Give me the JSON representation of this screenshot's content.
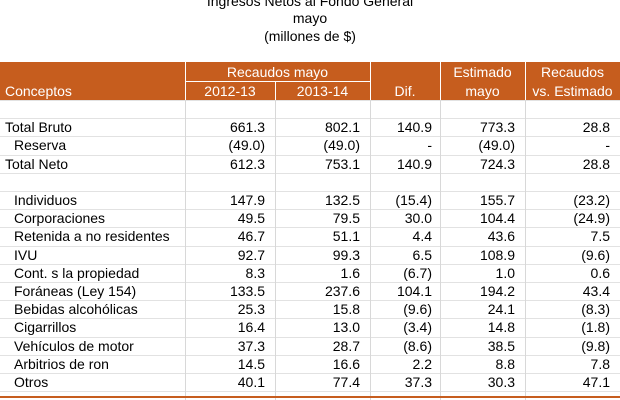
{
  "title": {
    "line1": "Ingresos Netos al Fondo General",
    "line2": "mayo",
    "line3": "(millones de $)"
  },
  "header": {
    "group": "Recaudos mayo",
    "estimado_top": "Estimado",
    "recaudos_top": "Recaudos",
    "columns": [
      "Conceptos",
      "2012-13",
      "2013-14",
      "Dif.",
      "mayo",
      "vs. Estimado"
    ]
  },
  "totals": [
    [
      "Total Bruto",
      "661.3",
      "802.1",
      "140.9",
      "773.3",
      "28.8"
    ],
    [
      "Reserva",
      "(49.0)",
      "(49.0)",
      "-",
      "(49.0)",
      "-"
    ],
    [
      "Total Neto",
      "612.3",
      "753.1",
      "140.9",
      "724.3",
      "28.8"
    ]
  ],
  "components": [
    [
      "Individuos",
      "147.9",
      "132.5",
      "(15.4)",
      "155.7",
      "(23.2)"
    ],
    [
      "Corporaciones",
      "49.5",
      "79.5",
      "30.0",
      "104.4",
      "(24.9)"
    ],
    [
      "Retenida a no residentes",
      "46.7",
      "51.1",
      "4.4",
      "43.6",
      "7.5"
    ],
    [
      "IVU",
      "92.7",
      "99.3",
      "6.5",
      "108.9",
      "(9.6)"
    ],
    [
      "Cont. s la propiedad",
      "8.3",
      "1.6",
      "(6.7)",
      "1.0",
      "0.6"
    ],
    [
      "Foráneas (Ley 154)",
      "133.5",
      "237.6",
      "104.1",
      "194.2",
      "43.4"
    ],
    [
      "Bebidas alcohólicas",
      "25.3",
      "15.8",
      "(9.6)",
      "24.1",
      "(8.3)"
    ],
    [
      "Cigarrillos",
      "16.4",
      "13.0",
      "(3.4)",
      "14.8",
      "(1.8)"
    ],
    [
      "Vehículos de motor",
      "37.3",
      "28.7",
      "(8.6)",
      "38.5",
      "(9.8)"
    ],
    [
      "Arbitrios de ron",
      "14.5",
      "16.6",
      "2.2",
      "8.8",
      "7.8"
    ],
    [
      "Otros",
      "40.1",
      "77.4",
      "37.3",
      "30.3",
      "47.1"
    ]
  ]
}
